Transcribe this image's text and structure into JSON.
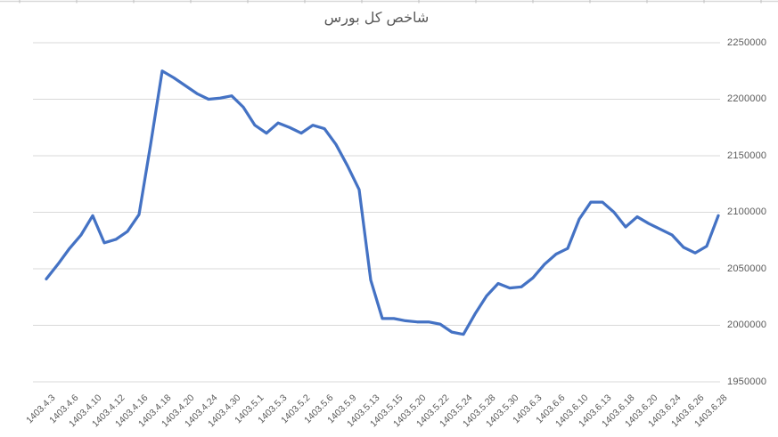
{
  "page": {
    "background": "#ffffff"
  },
  "chart_data": {
    "type": "line",
    "title": "شاخص کل بورس",
    "xlabel": "",
    "ylabel": "",
    "legend": "none",
    "grid": true,
    "y_axis_side": "right",
    "x_label_rotation": 45,
    "ylim": [
      1950000,
      2250000
    ],
    "y_ticks": [
      2250000,
      2200000,
      2150000,
      2100000,
      2050000,
      2000000,
      1950000
    ],
    "label_every": 2,
    "x_labels": [
      "1403.4.3",
      "1403.4.6",
      "1403.4.10",
      "1403.4.12",
      "1403.4.16",
      "1403.4.18",
      "1403.4.20",
      "1403.4.24",
      "1403.4.30",
      "1403.5.1",
      "1403.5.3",
      "1403.5.2",
      "1403.5.6",
      "1403.5.9",
      "1403.5.13",
      "1403.5.15",
      "1403.5.20",
      "1403.5.22",
      "1403.5.24",
      "1403.5.28",
      "1403.5.30",
      "1403.6.3",
      "1403.6.6",
      "1403.6.10",
      "1403.6.13",
      "1403.6.18",
      "1403.6.20",
      "1403.6.24",
      "1403.6.26",
      "1403.6.28"
    ],
    "values": [
      2041000,
      2054000,
      2068000,
      2080000,
      2097000,
      2073000,
      2076000,
      2083000,
      2098000,
      2160000,
      2225000,
      2219000,
      2212000,
      2205000,
      2200000,
      2201000,
      2203000,
      2193000,
      2177000,
      2170000,
      2179000,
      2175000,
      2170000,
      2177000,
      2174000,
      2160000,
      2141000,
      2120000,
      2040000,
      2006000,
      2006000,
      2004000,
      2003000,
      2003000,
      2001000,
      1994000,
      1992000,
      2010000,
      2026000,
      2037000,
      2033000,
      2034000,
      2042000,
      2054000,
      2063000,
      2068000,
      2094000,
      2109000,
      2109000,
      2100000,
      2087000,
      2096000,
      2090000,
      2085000,
      2080000,
      2069000,
      2064000,
      2070000,
      2097000
    ],
    "colors": {
      "line": "#4472C4",
      "grid": "#D9D9D9",
      "text": "#595959",
      "ruler": "#D9D9D9",
      "ruler_tick": "#BFBFBF"
    }
  }
}
